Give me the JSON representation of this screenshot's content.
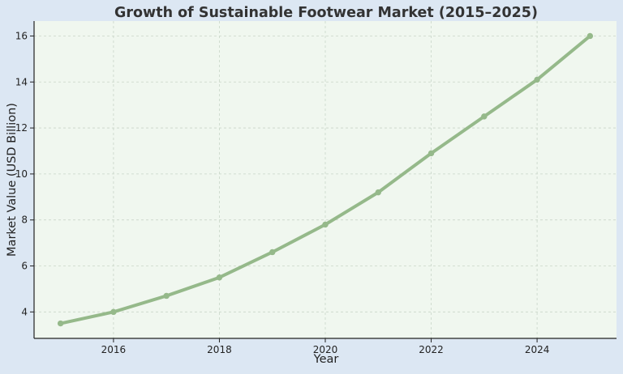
{
  "colors": {
    "page_background": "#dce7f3",
    "plot_background": "#f0f7ef",
    "line": "#95b98a",
    "grid": "#c9d6c8",
    "axis": "#222222",
    "title": "#333333"
  },
  "chart_data": {
    "type": "line",
    "title": "Growth of Sustainable Footwear Market (2015–2025)",
    "xlabel": "Year",
    "ylabel": "Market Value (USD Billion)",
    "x": [
      2015,
      2016,
      2017,
      2018,
      2019,
      2020,
      2021,
      2022,
      2023,
      2024,
      2025
    ],
    "series": [
      {
        "values": [
          3.5,
          4.0,
          4.7,
          5.5,
          6.6,
          7.8,
          9.2,
          10.9,
          12.5,
          14.1,
          16.0
        ]
      }
    ],
    "xlim": [
      2014.5,
      2025.5
    ],
    "ylim": [
      2.85,
      16.65
    ],
    "xticks": [
      2016,
      2018,
      2020,
      2022,
      2024
    ],
    "yticks": [
      4,
      6,
      8,
      10,
      12,
      14,
      16
    ],
    "grid": true,
    "grid_style": "dashed",
    "markers": true,
    "legend": "none"
  }
}
